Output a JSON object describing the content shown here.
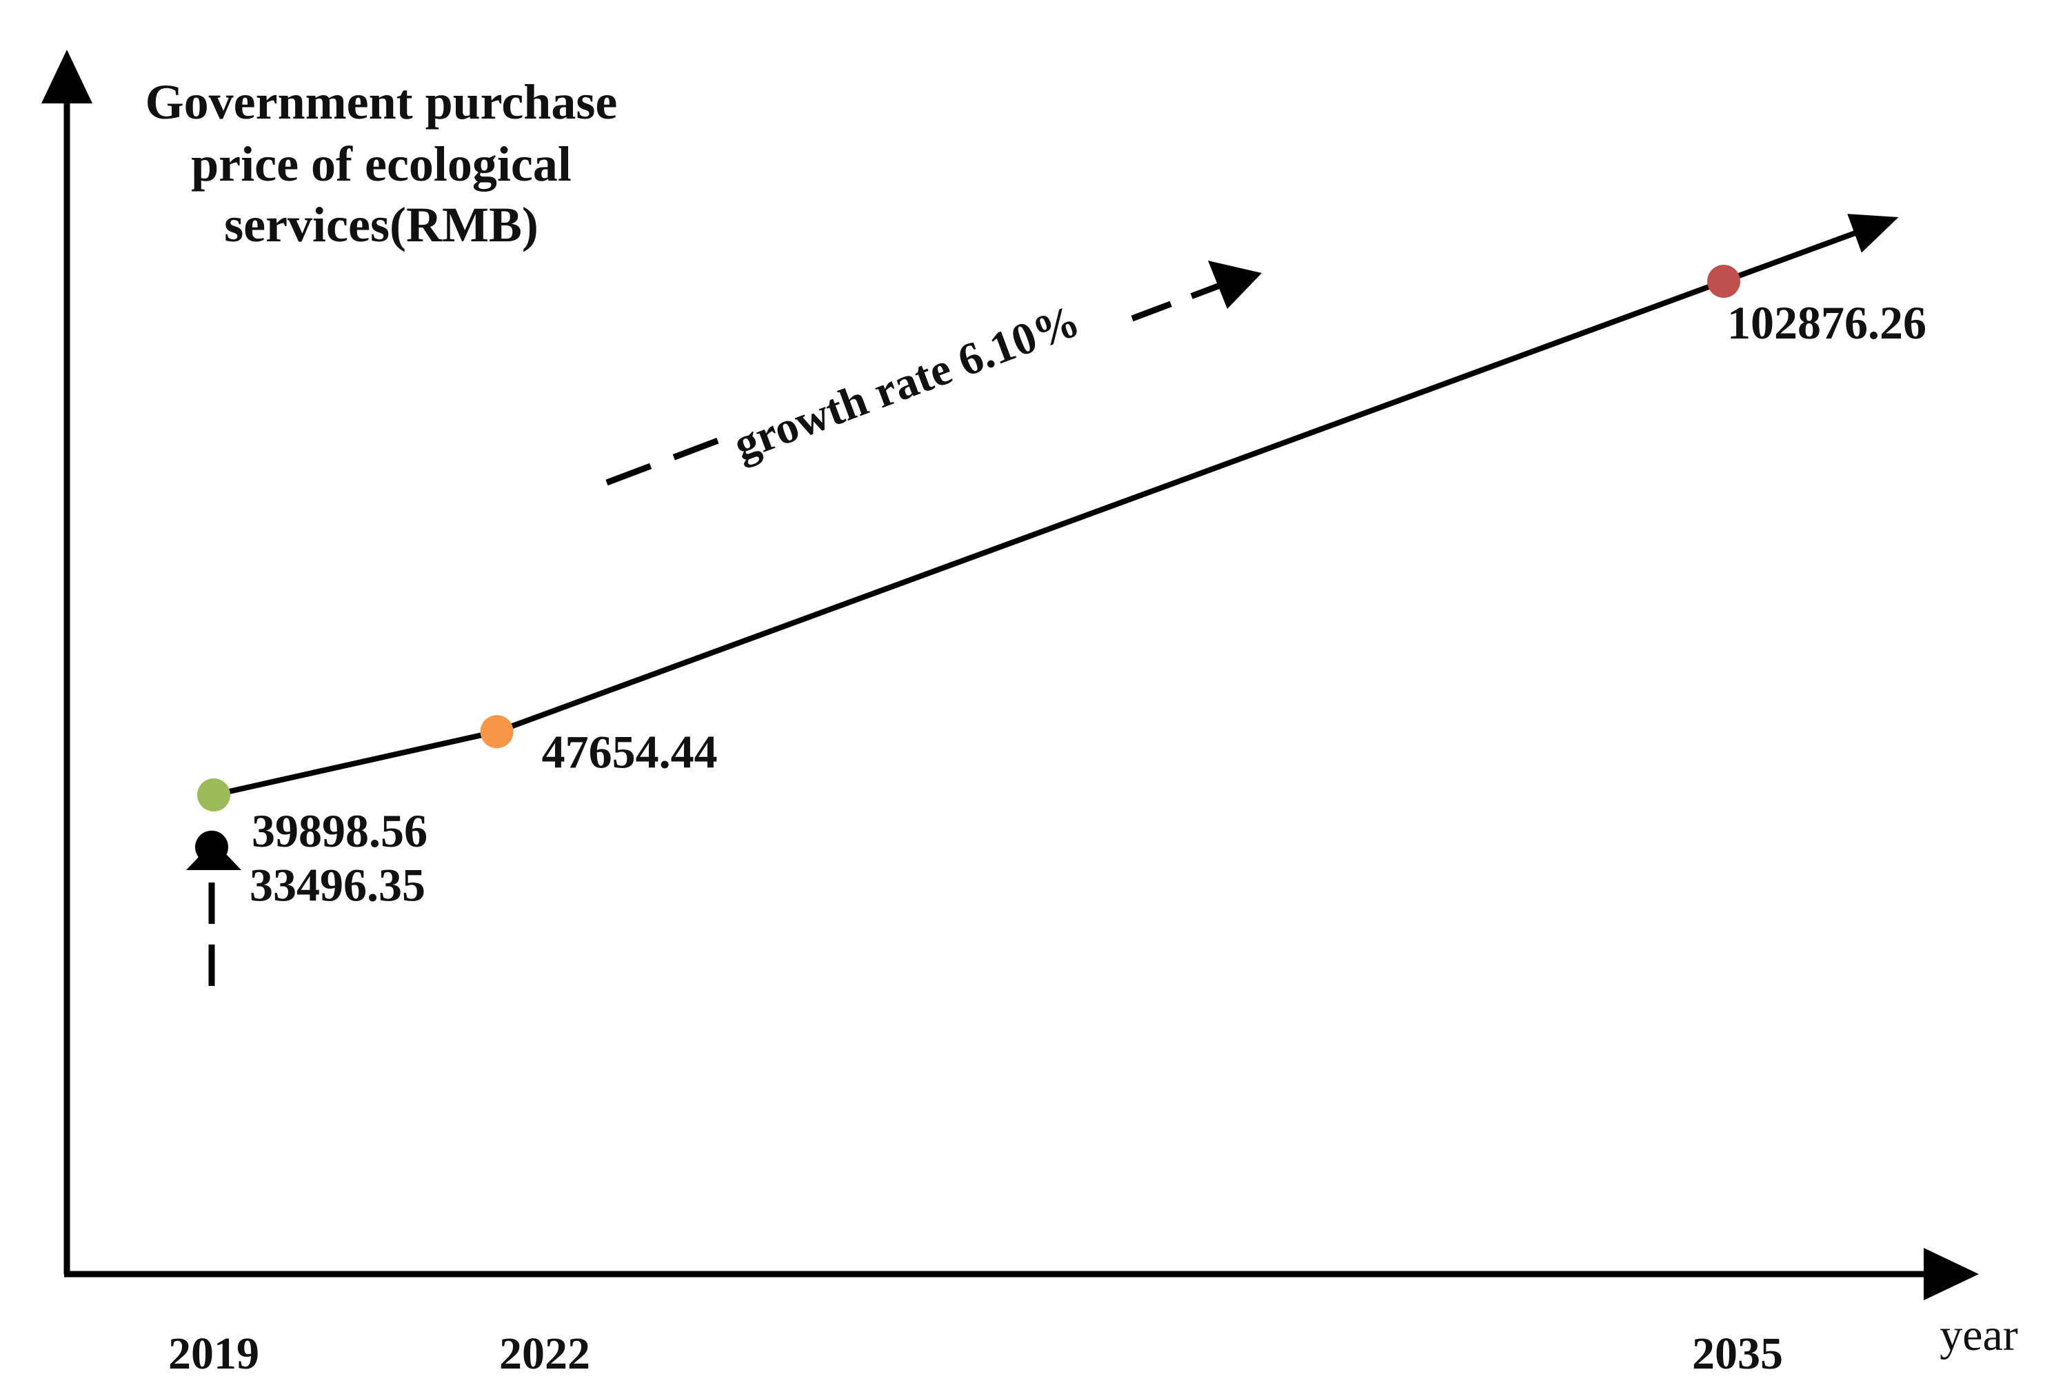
{
  "chart_data": {
    "type": "line",
    "title": "",
    "ylabel_lines": [
      "Government purchase",
      "price of ecological",
      "services(RMB)"
    ],
    "xlabel": "year",
    "categories": [
      "2019",
      "2022",
      "2035"
    ],
    "series": [
      {
        "name": "Government purchase price of ecological services",
        "x": [
          2019,
          2022,
          2035
        ],
        "values": [
          39898.56,
          47654.44,
          102876.26
        ],
        "labels": [
          "39898.56",
          "47654.44",
          "102876.26"
        ],
        "point_colors": [
          "#9bbb59",
          "#f79646",
          "#c0504d"
        ]
      }
    ],
    "baseline_point": {
      "x": 2019,
      "value": 33496.35,
      "label": "33496.35",
      "color": "#000000"
    },
    "annotation": "growth rate 6.10%",
    "grid": false,
    "legend": "none"
  }
}
